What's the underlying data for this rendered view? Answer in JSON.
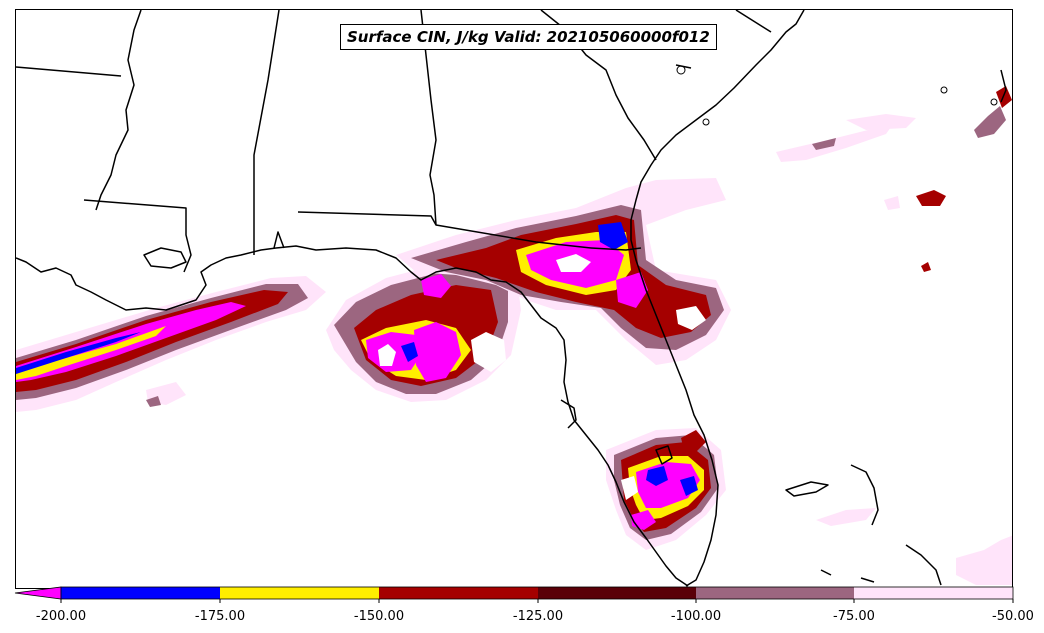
{
  "title": "Surface CIN, J/kg Valid: 202105060000f012",
  "colorbar": {
    "ticks": [
      "-200.00",
      "-175.00",
      "-150.00",
      "-125.00",
      "-100.00",
      "-75.00",
      "-50.00"
    ],
    "bins": [
      {
        "range": [
          -200,
          -175
        ],
        "color": "#0000ff"
      },
      {
        "range": [
          -175,
          -150
        ],
        "color": "#ffee00"
      },
      {
        "range": [
          -150,
          -125
        ],
        "color": "#a50000"
      },
      {
        "range": [
          -125,
          -100
        ],
        "color": "#5a0008"
      },
      {
        "range": [
          -100,
          -75
        ],
        "color": "#9c6680"
      },
      {
        "range": [
          -75,
          -50
        ],
        "color": "#ffe4fa"
      }
    ],
    "under_color": "#ff00ff",
    "extend": "min"
  },
  "colors": {
    "magenta": "#ff00ff",
    "blue": "#0000ff",
    "yellow": "#ffee00",
    "red": "#a50000",
    "dark_red": "#5a0008",
    "mauve": "#9c6680",
    "pale_pink": "#ffe4fa",
    "coastline": "#000000"
  }
}
